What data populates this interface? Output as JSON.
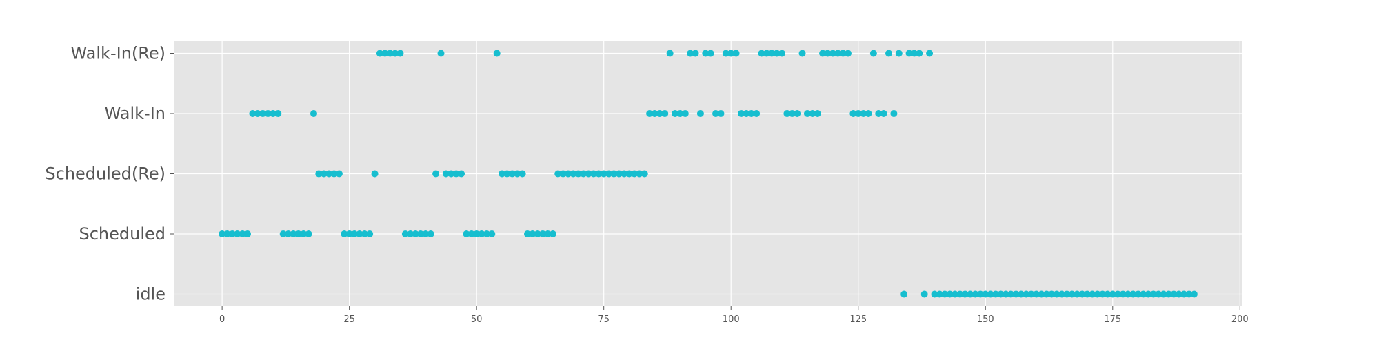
{
  "chart_data": {
    "type": "scatter",
    "title": "",
    "xlabel": "",
    "ylabel": "",
    "xlim": [
      -9.5,
      200.5
    ],
    "x_ticks": [
      0,
      25,
      50,
      75,
      100,
      125,
      150,
      175,
      200
    ],
    "categories": [
      "idle",
      "Scheduled",
      "Scheduled(Re)",
      "Walk-In",
      "Walk-In(Re)"
    ],
    "grid": true,
    "marker_color": "#17BECF",
    "background_color": "#E5E5E5",
    "series": [
      {
        "category": "idle",
        "x": [
          134,
          138,
          140,
          141,
          142,
          143,
          144,
          145,
          146,
          147,
          148,
          149,
          150,
          151,
          152,
          153,
          154,
          155,
          156,
          157,
          158,
          159,
          160,
          161,
          162,
          163,
          164,
          165,
          166,
          167,
          168,
          169,
          170,
          171,
          172,
          173,
          174,
          175,
          176,
          177,
          178,
          179,
          180,
          181,
          182,
          183,
          184,
          185,
          186,
          187,
          188,
          189,
          190,
          191
        ]
      },
      {
        "category": "Scheduled",
        "x": [
          0,
          1,
          2,
          3,
          4,
          5,
          12,
          13,
          14,
          15,
          16,
          17,
          24,
          25,
          26,
          27,
          28,
          29,
          36,
          37,
          38,
          39,
          40,
          41,
          48,
          49,
          50,
          51,
          52,
          53,
          60,
          61,
          62,
          63,
          64,
          65
        ]
      },
      {
        "category": "Scheduled(Re)",
        "x": [
          19,
          20,
          21,
          22,
          23,
          30,
          42,
          44,
          45,
          46,
          47,
          55,
          56,
          57,
          58,
          59,
          66,
          67,
          68,
          69,
          70,
          71,
          72,
          73,
          74,
          75,
          76,
          77,
          78,
          79,
          80,
          81,
          82,
          83
        ]
      },
      {
        "category": "Walk-In",
        "x": [
          6,
          7,
          8,
          9,
          10,
          11,
          18,
          84,
          85,
          86,
          87,
          89,
          90,
          91,
          94,
          97,
          98,
          102,
          103,
          104,
          105,
          111,
          112,
          113,
          115,
          116,
          117,
          124,
          125,
          126,
          127,
          129,
          130,
          132
        ]
      },
      {
        "category": "Walk-In(Re)",
        "x": [
          31,
          32,
          33,
          34,
          35,
          43,
          54,
          88,
          92,
          93,
          95,
          96,
          99,
          100,
          101,
          106,
          107,
          108,
          109,
          110,
          114,
          118,
          119,
          120,
          121,
          122,
          123,
          128,
          131,
          133,
          135,
          136,
          137,
          139
        ]
      }
    ]
  }
}
